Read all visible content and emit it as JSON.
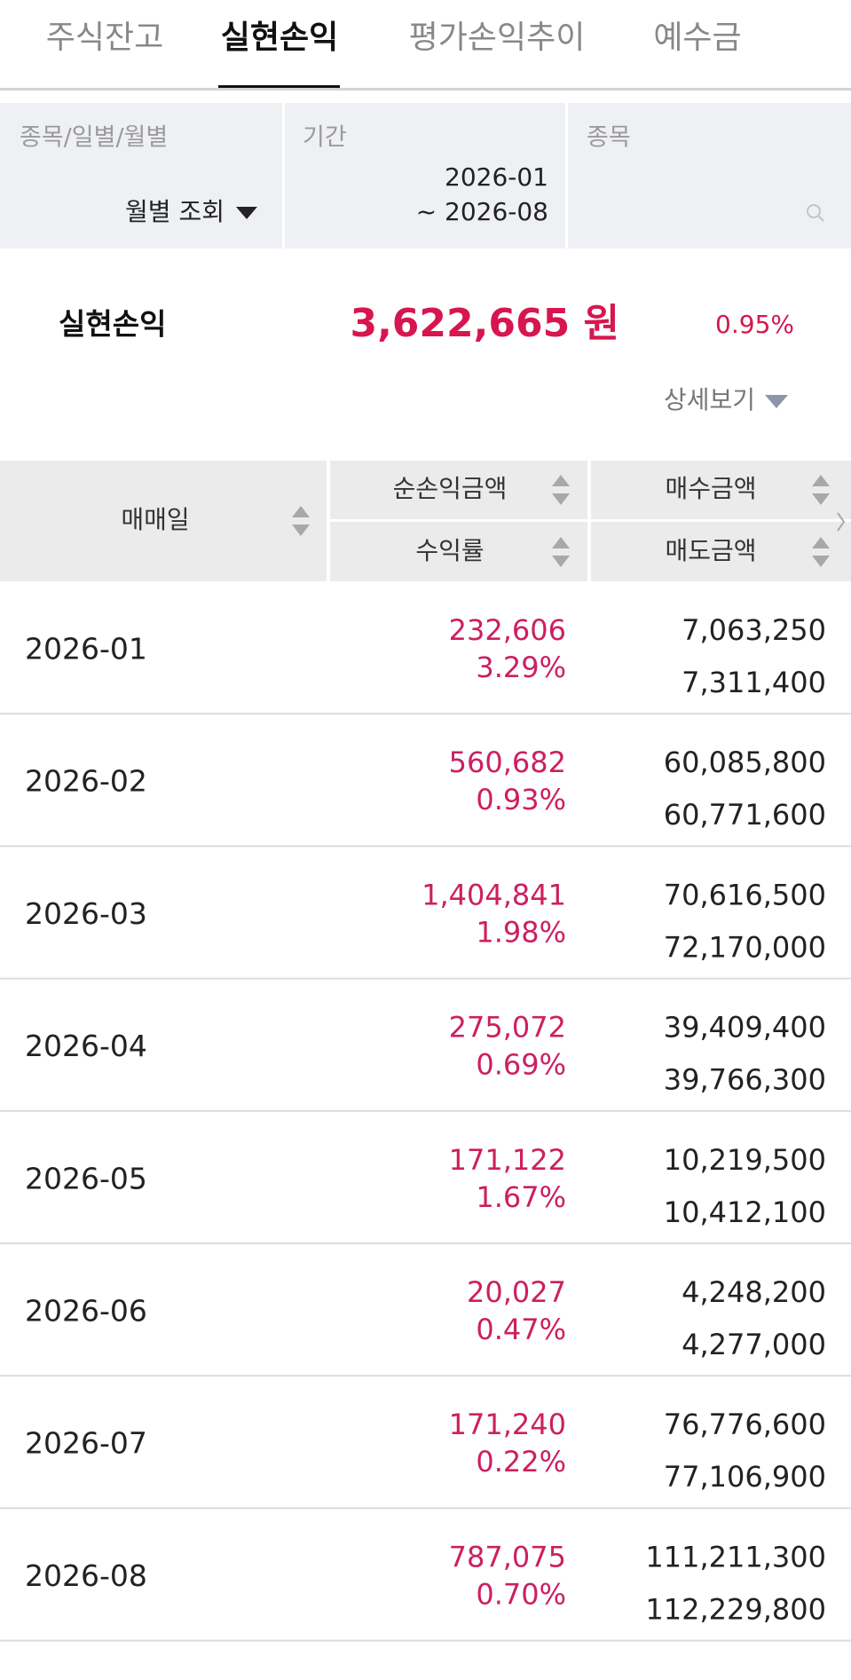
{
  "tabs": [
    "주식잔고",
    "실현손익",
    "평가손익추이",
    "예수금"
  ],
  "active_tab": 1,
  "filters": {
    "type": {
      "label": "종목/일별/월별",
      "value": "월별 조회"
    },
    "period": {
      "label": "기간",
      "from": "2026-01",
      "to": "~ 2026-08"
    },
    "stock": {
      "label": "종목"
    }
  },
  "summary": {
    "label": "실현손익",
    "amount": "3,622,665 원",
    "rate": "0.95%",
    "detail": "상세보기"
  },
  "table": {
    "headers": {
      "date": "매매일",
      "profit": "순손익금액",
      "rate": "수익률",
      "buy": "매수금액",
      "sell": "매도금액"
    },
    "rows": [
      {
        "date": "2026-01",
        "profit": "232,606",
        "rate": "3.29%",
        "buy": "7,063,250",
        "sell": "7,311,400"
      },
      {
        "date": "2026-02",
        "profit": "560,682",
        "rate": "0.93%",
        "buy": "60,085,800",
        "sell": "60,771,600"
      },
      {
        "date": "2026-03",
        "profit": "1,404,841",
        "rate": "1.98%",
        "buy": "70,616,500",
        "sell": "72,170,000"
      },
      {
        "date": "2026-04",
        "profit": "275,072",
        "rate": "0.69%",
        "buy": "39,409,400",
        "sell": "39,766,300"
      },
      {
        "date": "2026-05",
        "profit": "171,122",
        "rate": "1.67%",
        "buy": "10,219,500",
        "sell": "10,412,100"
      },
      {
        "date": "2026-06",
        "profit": "20,027",
        "rate": "0.47%",
        "buy": "4,248,200",
        "sell": "4,277,000"
      },
      {
        "date": "2026-07",
        "profit": "171,240",
        "rate": "0.22%",
        "buy": "76,776,600",
        "sell": "77,106,900"
      },
      {
        "date": "2026-08",
        "profit": "787,075",
        "rate": "0.70%",
        "buy": "111,211,300",
        "sell": "112,229,800"
      }
    ]
  }
}
